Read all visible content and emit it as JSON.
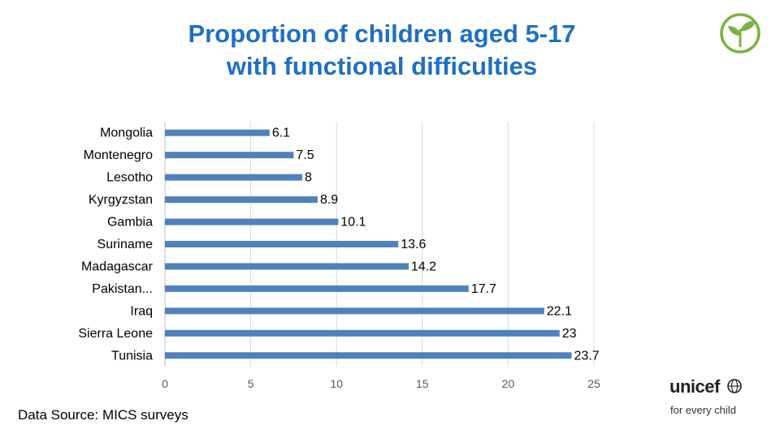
{
  "colors": {
    "title": "#1f6fc4",
    "bar": "#4f81bd",
    "grid": "#d9d9d9",
    "logo_green": "#7bb342"
  },
  "header": {
    "title_line1": "Proportion of children aged 5-17",
    "title_line2": "with functional difficulties"
  },
  "chart_data": {
    "type": "bar",
    "orientation": "horizontal",
    "title": "Proportion of children aged 5-17 with functional difficulties",
    "categories": [
      "Mongolia",
      "Montenegro",
      "Lesotho",
      "Kyrgyzstan",
      "Gambia",
      "Suriname",
      "Madagascar",
      "Pakistan...",
      "Iraq",
      "Sierra Leone",
      "Tunisia"
    ],
    "values": [
      6.1,
      7.5,
      8,
      8.9,
      10.1,
      13.6,
      14.2,
      17.7,
      22.1,
      23,
      23.7
    ],
    "value_labels": [
      "6.1",
      "7.5",
      "8",
      "8.9",
      "10.1",
      "13.6",
      "14.2",
      "17.7",
      "22.1",
      "23",
      "23.7"
    ],
    "xlim": [
      0,
      25
    ],
    "xticks": [
      0,
      5,
      10,
      15,
      20,
      25
    ],
    "xlabel": "",
    "ylabel": "",
    "grid": true,
    "legend": "none"
  },
  "footer": {
    "source": "Data Source: MICS surveys"
  },
  "branding": {
    "logo_word": "unicef",
    "tagline": "for every child",
    "leaf_icon": "sprout-icon",
    "globe_icon": "globe-icon"
  }
}
